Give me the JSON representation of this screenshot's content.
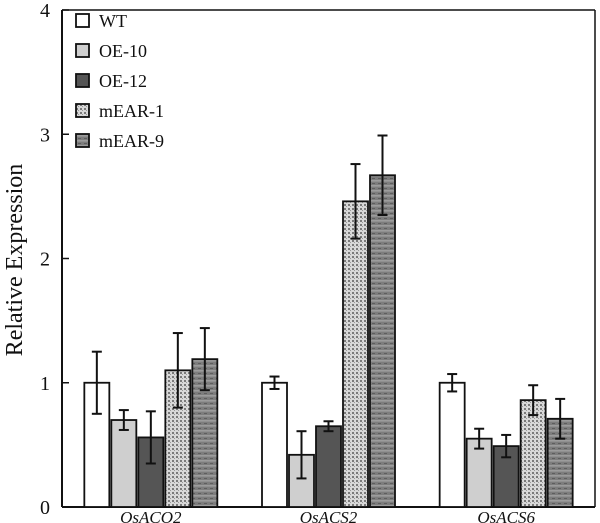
{
  "chart_data": {
    "type": "bar",
    "title": "",
    "xlabel": "",
    "ylabel": "Relative Expression",
    "ylim": [
      0,
      4
    ],
    "yticks": [
      0,
      1,
      2,
      3,
      4
    ],
    "grid": false,
    "legend_position": "top-left",
    "categories": [
      "OsACO2",
      "OsACS2",
      "OsACS6"
    ],
    "series": [
      {
        "name": "WT",
        "values": [
          1.0,
          1.0,
          1.0
        ],
        "errors": [
          0.25,
          0.05,
          0.07
        ],
        "color": "#ffffff",
        "pattern": "solid"
      },
      {
        "name": "OE-10",
        "values": [
          0.7,
          0.42,
          0.55
        ],
        "errors": [
          0.08,
          0.19,
          0.08
        ],
        "color": "#cfcfcf",
        "pattern": "solid"
      },
      {
        "name": "OE-12",
        "values": [
          0.56,
          0.65,
          0.49
        ],
        "errors": [
          0.21,
          0.04,
          0.09
        ],
        "color": "#555555",
        "pattern": "solid"
      },
      {
        "name": "mEAR-1",
        "values": [
          1.1,
          2.46,
          0.86
        ],
        "errors": [
          0.3,
          0.3,
          0.12
        ],
        "color": "#bdbdbd",
        "pattern": "dots"
      },
      {
        "name": "mEAR-9",
        "values": [
          1.19,
          2.67,
          0.71
        ],
        "errors": [
          0.25,
          0.32,
          0.16
        ],
        "color": "#8a8a8a",
        "pattern": "stripes"
      }
    ]
  }
}
